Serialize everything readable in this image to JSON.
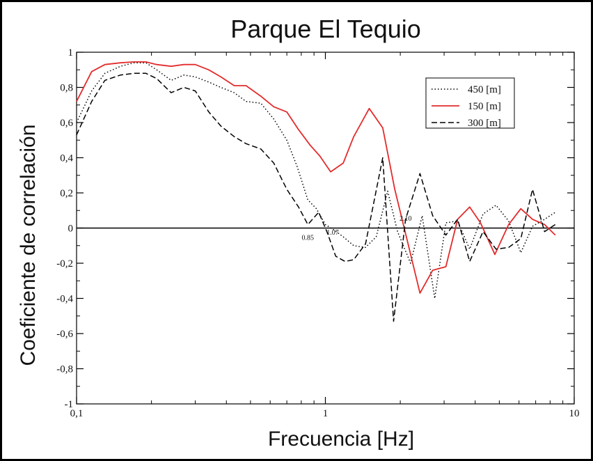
{
  "chart_data": {
    "type": "line",
    "title": "Parque El Tequio",
    "xlabel": "Frecuencia [Hz]",
    "ylabel": "Coeficiente de correlación",
    "xscale": "log",
    "xlim": [
      0.1,
      10
    ],
    "ylim": [
      -1,
      1
    ],
    "x_ticks": [
      {
        "value": 0.1,
        "label": "0,1"
      },
      {
        "value": 1,
        "label": "1"
      },
      {
        "value": 10,
        "label": "10"
      }
    ],
    "y_ticks": [
      {
        "value": -1,
        "label": "-1"
      },
      {
        "value": -0.8,
        "label": "-0,8"
      },
      {
        "value": -0.6,
        "label": "-0,6"
      },
      {
        "value": -0.4,
        "label": "-0,4"
      },
      {
        "value": -0.2,
        "label": "-0,2"
      },
      {
        "value": 0,
        "label": "0"
      },
      {
        "value": 0.2,
        "label": "0,2"
      },
      {
        "value": 0.4,
        "label": "0,4"
      },
      {
        "value": 0.6,
        "label": "0,6"
      },
      {
        "value": 0.8,
        "label": "0,8"
      },
      {
        "value": 1,
        "label": "1"
      }
    ],
    "legend_position": "top-right",
    "grid": false,
    "reference_line": 0,
    "series": [
      {
        "name": "450 [m]",
        "color": "#000000",
        "dash": "dotted",
        "x": [
          0.1,
          0.115,
          0.13,
          0.15,
          0.17,
          0.19,
          0.21,
          0.24,
          0.27,
          0.3,
          0.34,
          0.38,
          0.43,
          0.48,
          0.55,
          0.62,
          0.7,
          0.77,
          0.85,
          0.92,
          1.0,
          1.08,
          1.18,
          1.3,
          1.45,
          1.6,
          1.78,
          1.95,
          2.2,
          2.45,
          2.75,
          3.05,
          3.4,
          3.8,
          4.3,
          4.85,
          5.45,
          6.1,
          6.8,
          7.6,
          8.4
        ],
        "y": [
          0.6,
          0.78,
          0.88,
          0.92,
          0.94,
          0.94,
          0.9,
          0.84,
          0.87,
          0.86,
          0.83,
          0.8,
          0.77,
          0.72,
          0.71,
          0.62,
          0.5,
          0.35,
          0.16,
          0.11,
          0.02,
          -0.01,
          -0.05,
          -0.1,
          -0.11,
          -0.05,
          0.21,
          -0.02,
          -0.2,
          0.07,
          -0.4,
          0.03,
          0.04,
          -0.12,
          0.08,
          0.13,
          0.04,
          -0.14,
          0.01,
          0.05,
          0.09
        ]
      },
      {
        "name": "150 [m]",
        "color": "#e32b2b",
        "dash": "solid",
        "x": [
          0.1,
          0.115,
          0.13,
          0.15,
          0.17,
          0.19,
          0.21,
          0.24,
          0.27,
          0.3,
          0.34,
          0.38,
          0.43,
          0.48,
          0.55,
          0.62,
          0.7,
          0.78,
          0.87,
          0.95,
          1.05,
          1.18,
          1.3,
          1.5,
          1.7,
          1.9,
          2.15,
          2.4,
          2.7,
          3.05,
          3.4,
          3.8,
          4.2,
          4.8,
          5.45,
          6.1,
          6.8,
          7.6,
          8.4
        ],
        "y": [
          0.72,
          0.89,
          0.93,
          0.94,
          0.945,
          0.945,
          0.93,
          0.92,
          0.93,
          0.93,
          0.9,
          0.86,
          0.81,
          0.81,
          0.75,
          0.69,
          0.66,
          0.56,
          0.47,
          0.41,
          0.32,
          0.37,
          0.52,
          0.68,
          0.57,
          0.22,
          -0.09,
          -0.37,
          -0.24,
          -0.22,
          0.05,
          0.12,
          0.03,
          -0.15,
          0.02,
          0.11,
          0.05,
          0.02,
          -0.04
        ]
      },
      {
        "name": "300 [m]",
        "color": "#000000",
        "dash": "dashed",
        "x": [
          0.1,
          0.115,
          0.13,
          0.15,
          0.17,
          0.19,
          0.21,
          0.24,
          0.27,
          0.3,
          0.34,
          0.38,
          0.43,
          0.48,
          0.55,
          0.62,
          0.7,
          0.78,
          0.85,
          0.94,
          1.02,
          1.1,
          1.2,
          1.3,
          1.45,
          1.7,
          1.88,
          2.1,
          2.4,
          2.7,
          3.05,
          3.4,
          3.8,
          4.3,
          4.85,
          5.45,
          6.1,
          6.8,
          7.6,
          8.4
        ],
        "y": [
          0.53,
          0.72,
          0.84,
          0.87,
          0.88,
          0.88,
          0.85,
          0.77,
          0.8,
          0.78,
          0.66,
          0.58,
          0.52,
          0.48,
          0.45,
          0.37,
          0.22,
          0.12,
          0.02,
          0.09,
          -0.03,
          -0.16,
          -0.19,
          -0.18,
          -0.09,
          0.4,
          -0.53,
          0.05,
          0.31,
          0.07,
          -0.04,
          0.05,
          -0.19,
          -0.02,
          -0.12,
          -0.11,
          -0.06,
          0.22,
          -0.02,
          0.02
        ]
      }
    ],
    "annotations": [
      {
        "text": "0.85",
        "x": 0.85,
        "y": -0.02
      },
      {
        "text": "1.07",
        "x": 1.07,
        "y": 0.01
      },
      {
        "text": "2.10",
        "x": 2.1,
        "y": 0.09
      }
    ]
  }
}
